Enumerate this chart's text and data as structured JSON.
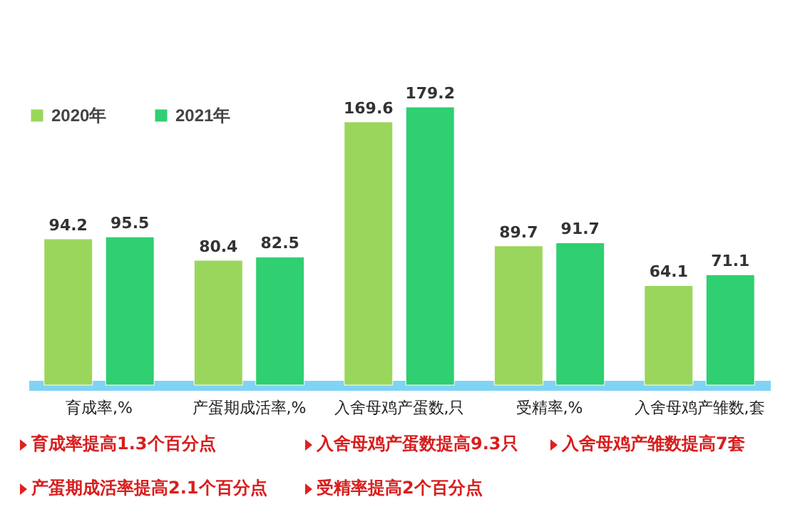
{
  "chart_data": {
    "type": "bar",
    "categories": [
      "育成率,%",
      "产蛋期成活率,%",
      "入舍母鸡产蛋数,只",
      "受精率,%",
      "入舍母鸡产雏数,套"
    ],
    "series": [
      {
        "name": "2020年",
        "color": "#9ad65c",
        "values": [
          94.2,
          80.4,
          169.6,
          89.7,
          64.1
        ]
      },
      {
        "name": "2021年",
        "color": "#2fcf72",
        "values": [
          95.5,
          82.5,
          179.2,
          91.7,
          71.1
        ]
      }
    ],
    "data_labels": true,
    "legend": "top left",
    "annotations": [
      "育成率提高1.3个百分点",
      "入舍母鸡产蛋数提高9.3只",
      "入舍母鸡产雏数提高7套",
      "产蛋期成活率提高2.1个百分点",
      "受精率提高2个百分点"
    ]
  }
}
